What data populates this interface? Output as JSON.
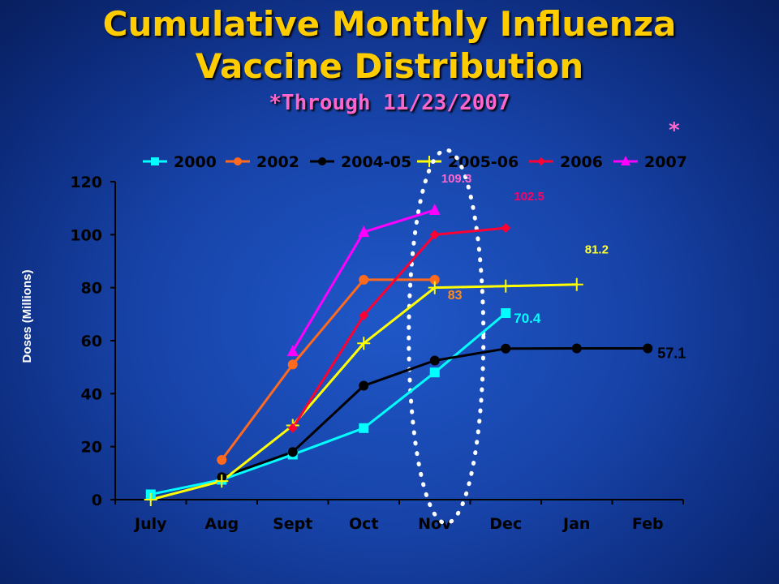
{
  "title": {
    "line1": "Cumulative Monthly Influenza",
    "line2": "Vaccine Distribution",
    "subtitle": "*Through 11/23/2007",
    "asterisk": "*"
  },
  "colors": {
    "background": "#1743a8",
    "title": "#ffcc00",
    "subtitle": "#ff66cc"
  },
  "chart_data": {
    "type": "line",
    "ylabel": "Doses (Millions)",
    "xlabel": "",
    "ylim": [
      0,
      120
    ],
    "y_ticks": [
      0,
      20,
      40,
      60,
      80,
      100,
      120
    ],
    "categories": [
      "July",
      "Aug",
      "Sept",
      "Oct",
      "Nov",
      "Dec",
      "Jan",
      "Feb"
    ],
    "legend_position": "top",
    "grid": false,
    "series": [
      {
        "name": "2000",
        "color": "#00ffff",
        "marker": "square",
        "values": [
          2,
          7.5,
          17,
          27,
          48,
          70.4,
          null,
          null
        ]
      },
      {
        "name": "2002",
        "color": "#ff6a1f",
        "marker": "circle",
        "values": [
          null,
          15,
          51,
          83,
          83,
          null,
          null,
          null
        ]
      },
      {
        "name": "2004-05",
        "color": "#000000",
        "marker": "circle",
        "values": [
          null,
          8.5,
          18,
          43,
          52.5,
          57,
          57.1,
          57.1
        ]
      },
      {
        "name": "2005-06",
        "color": "#ffff00",
        "marker": "cross",
        "values": [
          0,
          7,
          28,
          59,
          80,
          80.6,
          81.2,
          null
        ]
      },
      {
        "name": "2006",
        "color": "#ff0033",
        "marker": "diamond",
        "values": [
          null,
          null,
          27,
          69.5,
          100,
          102.5,
          null,
          null
        ]
      },
      {
        "name": "2007",
        "color": "#ff00ff",
        "marker": "triangle",
        "values": [
          null,
          null,
          56,
          101,
          109.3,
          null,
          null,
          null
        ]
      }
    ],
    "annotations": [
      {
        "text": "109.3",
        "color": "#ff66cc",
        "series": "2007"
      },
      {
        "text": "102.5",
        "color": "#ff0066",
        "series": "2006"
      },
      {
        "text": "83",
        "color": "#ff8c1a",
        "series": "2002"
      },
      {
        "text": "81.2",
        "color": "#ffff33",
        "series": "2005-06"
      },
      {
        "text": "70.4",
        "color": "#00ffff",
        "series": "2000"
      },
      {
        "text": "57.1",
        "color": "#000000",
        "series": "2004-05"
      }
    ]
  }
}
